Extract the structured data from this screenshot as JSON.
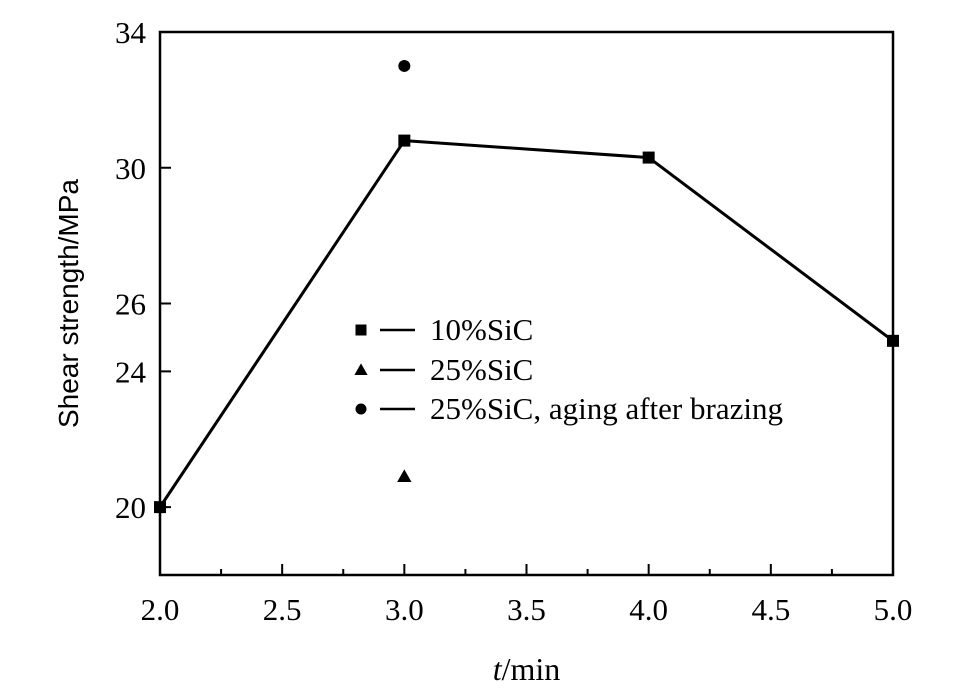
{
  "chart_data": {
    "type": "line",
    "xlabel_italic": "t",
    "xlabel_rest": "/min",
    "ylabel": "Shear strength/MPa",
    "xlim": [
      2.0,
      5.0
    ],
    "ylim": [
      18,
      34
    ],
    "x_ticks": [
      2.0,
      2.5,
      3.0,
      3.5,
      4.0,
      4.5,
      5.0
    ],
    "x_tick_labels": [
      "2.0",
      "2.5",
      "3.0",
      "3.5",
      "4.0",
      "4.5",
      "5.0"
    ],
    "y_ticks": [
      20,
      24,
      26,
      30,
      34
    ],
    "y_tick_labels": [
      "20",
      "24",
      "26",
      "30",
      "34"
    ],
    "grid": false,
    "legend_position": "center-left",
    "series": [
      {
        "name": "10%SiC",
        "marker": "square",
        "connected": true,
        "x": [
          2.0,
          3.0,
          4.0,
          5.0
        ],
        "y": [
          20.0,
          30.8,
          30.3,
          24.9
        ]
      },
      {
        "name": "25%SiC",
        "marker": "triangle",
        "connected": false,
        "x": [
          3.0
        ],
        "y": [
          20.9
        ]
      },
      {
        "name": "25%SiC, aging after brazing",
        "marker": "circle",
        "connected": false,
        "x": [
          3.0
        ],
        "y": [
          33.0
        ]
      }
    ]
  }
}
